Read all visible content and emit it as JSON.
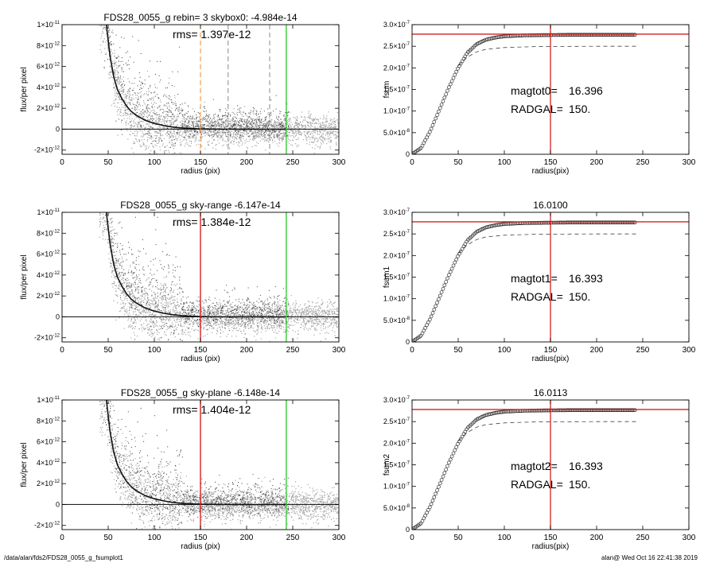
{
  "footer": {
    "path": "/data/alan/fds2/FDS28_0055_g_fsumplot1",
    "stamp": "alan@  Wed Oct 16 22:41:38 2019"
  },
  "colors": {
    "background": "#ffffff",
    "grey_scatter": "#a6a6a6",
    "dark_scatter": "#3a3a3a",
    "profile_line": "#111111",
    "red_marker": "#d62020",
    "green_marker": "#33cc33",
    "orange_marker": "#f08a24",
    "dashed_marker": "#888888"
  },
  "chart_data": [
    {
      "type": "scatter",
      "panel": "profile-1",
      "title": "FDS28_0055_g rebin= 3    skybox0: -4.984e-14",
      "annotation": "rms= 1.397e-12",
      "xlabel": "radius (pix)",
      "ylabel": "flux/per pixel",
      "xlim": [
        0,
        300
      ],
      "ylim": [
        -2.4e-12,
        1e-11
      ],
      "xticks": [
        0,
        50,
        100,
        150,
        200,
        250,
        300
      ],
      "yticks": [
        {
          "value": 1e-11,
          "mant": "1×10",
          "exp": "-11"
        },
        {
          "value": 8e-12,
          "mant": "8×10",
          "exp": "-12"
        },
        {
          "value": 6e-12,
          "mant": "6×10",
          "exp": "-12"
        },
        {
          "value": 4e-12,
          "mant": "4×10",
          "exp": "-12"
        },
        {
          "value": 2e-12,
          "mant": "2×10",
          "exp": "-12"
        },
        {
          "value": 0,
          "mant": "0",
          "exp": ""
        },
        {
          "value": -2e-12,
          "mant": "-2×10",
          "exp": "-12"
        }
      ],
      "profile_curve": {
        "x": [
          48,
          52,
          56,
          60,
          65,
          70,
          75,
          80,
          90,
          100,
          110,
          120,
          130,
          140,
          150,
          175,
          200,
          225,
          243
        ],
        "y": [
          1e-11,
          7e-12,
          5e-12,
          3.8e-12,
          2.9e-12,
          2.2e-12,
          1.7e-12,
          1.35e-12,
          8.5e-13,
          5.5e-13,
          3.5e-13,
          2e-13,
          1.2e-13,
          6e-14,
          2e-14,
          0,
          0,
          0,
          0
        ]
      },
      "vertical_markers": [
        {
          "x": 150,
          "style": "dashed",
          "color": "orange"
        },
        {
          "x": 180,
          "style": "dashed",
          "color": "grey"
        },
        {
          "x": 225,
          "style": "dashed",
          "color": "grey"
        },
        {
          "x": 243,
          "style": "solid",
          "color": "green"
        }
      ]
    },
    {
      "type": "line",
      "panel": "fsum-1",
      "title": "",
      "xlabel": "radius(pix)",
      "ylabel": "fsum",
      "xlim": [
        0,
        300
      ],
      "ylim": [
        0,
        3e-07
      ],
      "xticks": [
        0,
        50,
        100,
        150,
        200,
        250,
        300
      ],
      "yticks": [
        {
          "value": 3e-07,
          "mant": "3.0×10",
          "exp": "-7"
        },
        {
          "value": 2.5e-07,
          "mant": "2.5×10",
          "exp": "-7"
        },
        {
          "value": 2e-07,
          "mant": "2.0×10",
          "exp": "-7"
        },
        {
          "value": 1.5e-07,
          "mant": "1.5×10",
          "exp": "-7"
        },
        {
          "value": 1e-07,
          "mant": "1.0×10",
          "exp": "-7"
        },
        {
          "value": 5e-08,
          "mant": "5.0×10",
          "exp": "-8"
        },
        {
          "value": 0,
          "mant": "0",
          "exp": ""
        }
      ],
      "fsum_curve": {
        "x": [
          0,
          10,
          20,
          30,
          40,
          50,
          60,
          70,
          80,
          90,
          100,
          110,
          120,
          130,
          150,
          175,
          200,
          225,
          243
        ],
        "y": [
          0,
          1.5e-08,
          5.5e-08,
          1.05e-07,
          1.55e-07,
          2e-07,
          2.35e-07,
          2.55e-07,
          2.65e-07,
          2.7e-07,
          2.73e-07,
          2.74e-07,
          2.75e-07,
          2.755e-07,
          2.76e-07,
          2.765e-07,
          2.765e-07,
          2.765e-07,
          2.765e-07
        ]
      },
      "model_curve": {
        "x": [
          50,
          60,
          70,
          80,
          100,
          130,
          160,
          200,
          243
        ],
        "y": [
          2.05e-07,
          2.25e-07,
          2.37e-07,
          2.43e-07,
          2.47e-07,
          2.49e-07,
          2.495e-07,
          2.5e-07,
          2.5e-07
        ]
      },
      "hline": 2.78e-07,
      "vline": 150,
      "annotations": [
        {
          "label": "magtot0=",
          "value": "16.396"
        },
        {
          "label": "RADGAL=",
          "value": "150."
        }
      ]
    },
    {
      "type": "scatter",
      "panel": "profile-2",
      "title": "FDS28_0055_g sky-range -6.147e-14",
      "annotation": "rms= 1.384e-12",
      "xlabel": "radius (pix)",
      "ylabel": "flux/per pixel",
      "xlim": [
        0,
        300
      ],
      "ylim": [
        -2.4e-12,
        1e-11
      ],
      "xticks": [
        0,
        50,
        100,
        150,
        200,
        250,
        300
      ],
      "yticks": [
        {
          "value": 1e-11,
          "mant": "1×10",
          "exp": "-11"
        },
        {
          "value": 8e-12,
          "mant": "8×10",
          "exp": "-12"
        },
        {
          "value": 6e-12,
          "mant": "6×10",
          "exp": "-12"
        },
        {
          "value": 4e-12,
          "mant": "4×10",
          "exp": "-12"
        },
        {
          "value": 2e-12,
          "mant": "2×10",
          "exp": "-12"
        },
        {
          "value": 0,
          "mant": "0",
          "exp": ""
        },
        {
          "value": -2e-12,
          "mant": "-2×10",
          "exp": "-12"
        }
      ],
      "profile_curve": {
        "x": [
          48,
          52,
          56,
          60,
          65,
          70,
          75,
          80,
          90,
          100,
          110,
          120,
          130,
          140,
          150,
          175,
          200,
          225,
          243
        ],
        "y": [
          1e-11,
          7e-12,
          5e-12,
          3.8e-12,
          2.9e-12,
          2.2e-12,
          1.7e-12,
          1.35e-12,
          8.5e-13,
          5.5e-13,
          3.5e-13,
          2e-13,
          1.2e-13,
          6e-14,
          2e-14,
          0,
          0,
          0,
          0
        ]
      },
      "vertical_markers": [
        {
          "x": 150,
          "style": "solid",
          "color": "red"
        },
        {
          "x": 243,
          "style": "solid",
          "color": "green"
        }
      ]
    },
    {
      "type": "line",
      "panel": "fsum-2",
      "title": "16.0100",
      "xlabel": "radius(pix)",
      "ylabel": "fsum1",
      "xlim": [
        0,
        300
      ],
      "ylim": [
        0,
        3e-07
      ],
      "xticks": [
        0,
        50,
        100,
        150,
        200,
        250,
        300
      ],
      "yticks": [
        {
          "value": 3e-07,
          "mant": "3.0×10",
          "exp": "-7"
        },
        {
          "value": 2.5e-07,
          "mant": "2.5×10",
          "exp": "-7"
        },
        {
          "value": 2e-07,
          "mant": "2.0×10",
          "exp": "-7"
        },
        {
          "value": 1.5e-07,
          "mant": "1.5×10",
          "exp": "-7"
        },
        {
          "value": 1e-07,
          "mant": "1.0×10",
          "exp": "-7"
        },
        {
          "value": 5e-08,
          "mant": "5.0×10",
          "exp": "-8"
        },
        {
          "value": 0,
          "mant": "0",
          "exp": ""
        }
      ],
      "fsum_curve": {
        "x": [
          0,
          10,
          20,
          30,
          40,
          50,
          60,
          70,
          80,
          90,
          100,
          110,
          120,
          130,
          150,
          175,
          200,
          225,
          243
        ],
        "y": [
          0,
          1.5e-08,
          5.5e-08,
          1.05e-07,
          1.55e-07,
          2e-07,
          2.35e-07,
          2.55e-07,
          2.65e-07,
          2.7e-07,
          2.73e-07,
          2.74e-07,
          2.75e-07,
          2.755e-07,
          2.76e-07,
          2.765e-07,
          2.765e-07,
          2.765e-07,
          2.765e-07
        ]
      },
      "model_curve": {
        "x": [
          50,
          60,
          70,
          80,
          100,
          130,
          160,
          200,
          243
        ],
        "y": [
          2.05e-07,
          2.25e-07,
          2.37e-07,
          2.43e-07,
          2.47e-07,
          2.49e-07,
          2.495e-07,
          2.5e-07,
          2.5e-07
        ]
      },
      "hline": 2.78e-07,
      "vline": 150,
      "annotations": [
        {
          "label": "magtot1=",
          "value": "16.393"
        },
        {
          "label": "RADGAL=",
          "value": "150."
        }
      ]
    },
    {
      "type": "scatter",
      "panel": "profile-3",
      "title": "FDS28_0055_g sky-plane -6.148e-14",
      "annotation": "rms= 1.404e-12",
      "xlabel": "radius (pix)",
      "ylabel": "flux/per pixel",
      "xlim": [
        0,
        300
      ],
      "ylim": [
        -2.4e-12,
        1e-11
      ],
      "xticks": [
        0,
        50,
        100,
        150,
        200,
        250,
        300
      ],
      "yticks": [
        {
          "value": 1e-11,
          "mant": "1×10",
          "exp": "-11"
        },
        {
          "value": 8e-12,
          "mant": "8×10",
          "exp": "-12"
        },
        {
          "value": 6e-12,
          "mant": "6×10",
          "exp": "-12"
        },
        {
          "value": 4e-12,
          "mant": "4×10",
          "exp": "-12"
        },
        {
          "value": 2e-12,
          "mant": "2×10",
          "exp": "-12"
        },
        {
          "value": 0,
          "mant": "0",
          "exp": ""
        },
        {
          "value": -2e-12,
          "mant": "-2×10",
          "exp": "-12"
        }
      ],
      "profile_curve": {
        "x": [
          48,
          52,
          56,
          60,
          65,
          70,
          75,
          80,
          90,
          100,
          110,
          120,
          130,
          140,
          150,
          175,
          200,
          225,
          243
        ],
        "y": [
          1e-11,
          7e-12,
          5e-12,
          3.8e-12,
          2.9e-12,
          2.2e-12,
          1.7e-12,
          1.35e-12,
          8.5e-13,
          5.5e-13,
          3.5e-13,
          2e-13,
          1.2e-13,
          6e-14,
          2e-14,
          0,
          0,
          0,
          0
        ]
      },
      "vertical_markers": [
        {
          "x": 150,
          "style": "solid",
          "color": "red"
        },
        {
          "x": 243,
          "style": "solid",
          "color": "green"
        }
      ]
    },
    {
      "type": "line",
      "panel": "fsum-3",
      "title": "16.0113",
      "xlabel": "radius(pix)",
      "ylabel": "fsum2",
      "xlim": [
        0,
        300
      ],
      "ylim": [
        0,
        3e-07
      ],
      "xticks": [
        0,
        50,
        100,
        150,
        200,
        250,
        300
      ],
      "yticks": [
        {
          "value": 3e-07,
          "mant": "3.0×10",
          "exp": "-7"
        },
        {
          "value": 2.5e-07,
          "mant": "2.5×10",
          "exp": "-7"
        },
        {
          "value": 2e-07,
          "mant": "2.0×10",
          "exp": "-7"
        },
        {
          "value": 1.5e-07,
          "mant": "1.5×10",
          "exp": "-7"
        },
        {
          "value": 1e-07,
          "mant": "1.0×10",
          "exp": "-7"
        },
        {
          "value": 5e-08,
          "mant": "5.0×10",
          "exp": "-8"
        },
        {
          "value": 0,
          "mant": "0",
          "exp": ""
        }
      ],
      "fsum_curve": {
        "x": [
          0,
          10,
          20,
          30,
          40,
          50,
          60,
          70,
          80,
          90,
          100,
          110,
          120,
          130,
          150,
          175,
          200,
          225,
          243
        ],
        "y": [
          0,
          1.5e-08,
          5.5e-08,
          1.05e-07,
          1.55e-07,
          2e-07,
          2.35e-07,
          2.55e-07,
          2.65e-07,
          2.7e-07,
          2.73e-07,
          2.74e-07,
          2.75e-07,
          2.755e-07,
          2.76e-07,
          2.765e-07,
          2.765e-07,
          2.765e-07,
          2.765e-07
        ]
      },
      "model_curve": {
        "x": [
          50,
          60,
          70,
          80,
          100,
          130,
          160,
          200,
          243
        ],
        "y": [
          2.05e-07,
          2.25e-07,
          2.37e-07,
          2.43e-07,
          2.47e-07,
          2.49e-07,
          2.495e-07,
          2.5e-07,
          2.5e-07
        ]
      },
      "hline": 2.78e-07,
      "vline": 150,
      "annotations": [
        {
          "label": "magtot2=",
          "value": "16.393"
        },
        {
          "label": "RADGAL=",
          "value": "150."
        }
      ]
    }
  ]
}
